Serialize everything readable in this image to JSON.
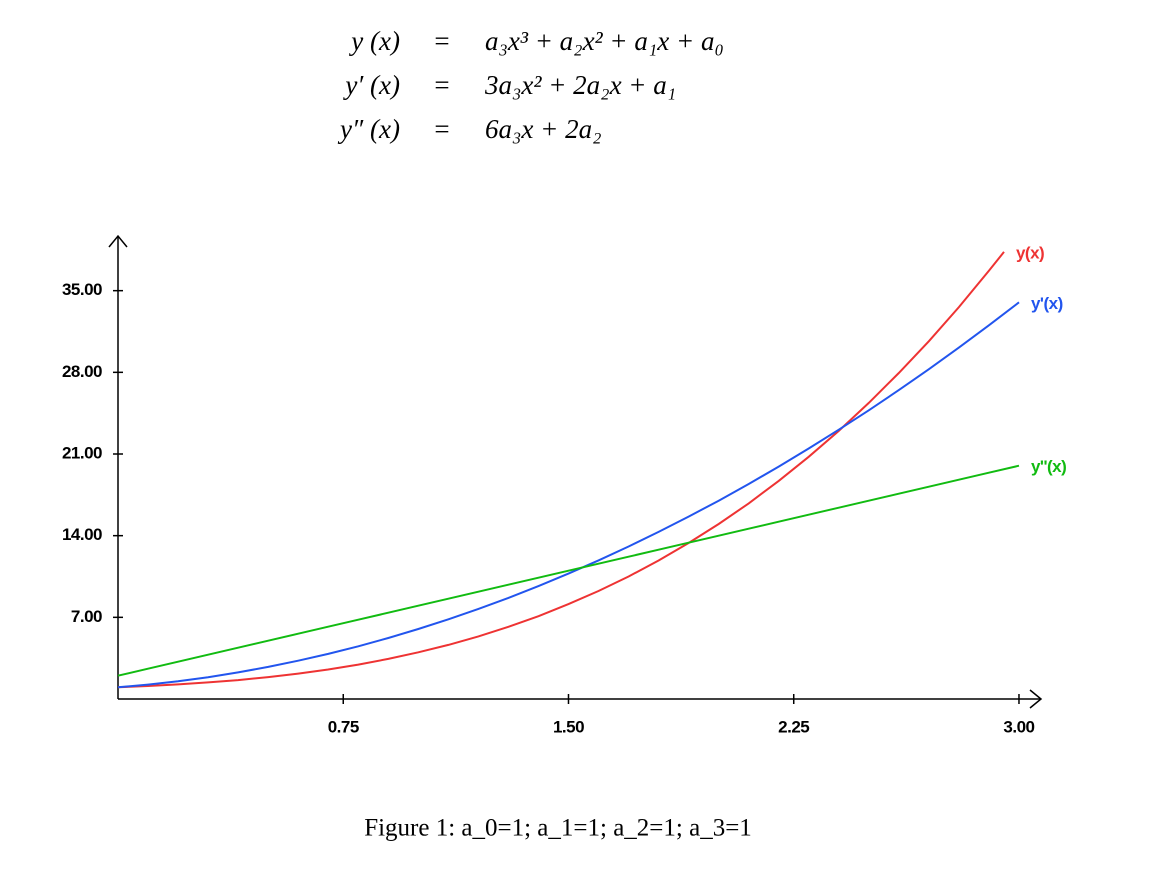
{
  "equations": [
    {
      "lhs": "y (x)",
      "eq": "=",
      "rhs": "a₃x³ + a₂x² + a₁x + a₀"
    },
    {
      "lhs": "y′ (x)",
      "eq": "=",
      "rhs": "3a₃x² + 2a₂x + a₁"
    },
    {
      "lhs": "y″ (x)",
      "eq": "=",
      "rhs": "6a₃x + 2a₂"
    }
  ],
  "chart_data": {
    "type": "line",
    "xlim": [
      0,
      3.07
    ],
    "ylim": [
      0,
      39.6
    ],
    "xticks": [
      0.75,
      {
        "value": 1.5,
        "label": "1.50"
      },
      2.25,
      {
        "value": 3,
        "label": "3.00"
      }
    ],
    "yticks": [
      {
        "value": 7,
        "label": "7.00"
      },
      {
        "value": 14,
        "label": "14.00"
      },
      {
        "value": 21,
        "label": "21.00"
      },
      {
        "value": 28,
        "label": "28.00"
      },
      {
        "value": 35,
        "label": "35.00"
      }
    ],
    "series": [
      {
        "name": "y(x)",
        "color": "#ee3333",
        "x": [
          0,
          0.1,
          0.2,
          0.3,
          0.4,
          0.5,
          0.6,
          0.7,
          0.8,
          0.9,
          1,
          1.1,
          1.2,
          1.3,
          1.4,
          1.5,
          1.6,
          1.7,
          1.8,
          1.9,
          2,
          2.1,
          2.2,
          2.3,
          2.4,
          2.5,
          2.6,
          2.7,
          2.8,
          2.9,
          2.95
        ],
        "values": [
          1,
          1.11,
          1.25,
          1.42,
          1.62,
          1.88,
          2.18,
          2.53,
          2.95,
          3.44,
          4,
          4.64,
          5.37,
          6.19,
          7.1,
          8.13,
          9.26,
          10.5,
          11.87,
          13.37,
          15,
          16.77,
          18.69,
          20.76,
          22.98,
          25.38,
          27.94,
          30.67,
          33.59,
          36.7,
          38.32
        ]
      },
      {
        "name": "y'(x)",
        "color": "#2255ee",
        "x": [
          0,
          0.1,
          0.2,
          0.3,
          0.4,
          0.5,
          0.6,
          0.7,
          0.8,
          0.9,
          1,
          1.1,
          1.2,
          1.3,
          1.4,
          1.5,
          1.6,
          1.7,
          1.8,
          1.9,
          2,
          2.1,
          2.2,
          2.3,
          2.4,
          2.5,
          2.6,
          2.7,
          2.8,
          2.9,
          3
        ],
        "values": [
          1,
          1.23,
          1.52,
          1.87,
          2.28,
          2.75,
          3.28,
          3.87,
          4.52,
          5.23,
          6,
          6.83,
          7.72,
          8.67,
          9.68,
          10.75,
          11.88,
          13.07,
          14.32,
          15.63,
          17,
          18.43,
          19.92,
          21.47,
          23.08,
          24.75,
          26.48,
          28.27,
          30.12,
          32.03,
          34
        ]
      },
      {
        "name": "y''(x)",
        "color": "#11bb11",
        "x": [
          0,
          0.1,
          0.2,
          0.3,
          0.4,
          0.5,
          0.6,
          0.7,
          0.8,
          0.9,
          1,
          1.1,
          1.2,
          1.3,
          1.4,
          1.5,
          1.6,
          1.7,
          1.8,
          1.9,
          2,
          2.1,
          2.2,
          2.3,
          2.4,
          2.5,
          2.6,
          2.7,
          2.8,
          2.9,
          3
        ],
        "values": [
          2,
          2.6,
          3.2,
          3.8,
          4.4,
          5,
          5.6,
          6.2,
          6.8,
          7.4,
          8,
          8.6,
          9.2,
          9.8,
          10.4,
          11,
          11.6,
          12.2,
          12.8,
          13.4,
          14,
          14.6,
          15.2,
          15.8,
          16.4,
          17,
          17.6,
          18.2,
          18.8,
          19.4,
          20
        ]
      }
    ]
  },
  "caption": "Figure 1: a_0=1; a_1=1; a_2=1; a_3=1"
}
